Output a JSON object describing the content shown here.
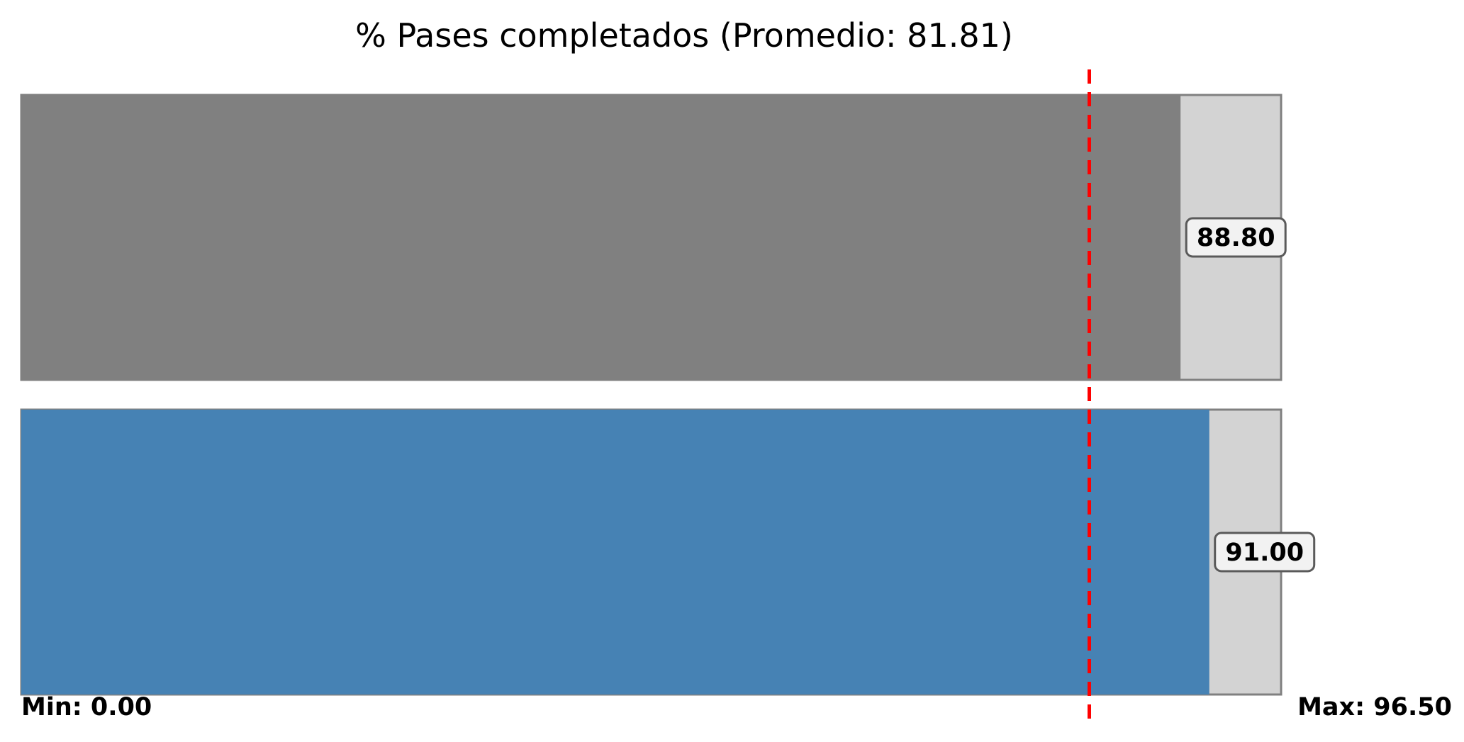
{
  "chart_data": {
    "type": "bar",
    "orientation": "horizontal",
    "title": "% Pases completados (Promedio: 81.81)",
    "xlabel": "",
    "ylabel": "",
    "xlim": [
      0,
      96.5
    ],
    "grid": false,
    "average": 81.81,
    "min_label": "Min: 0.00",
    "max_label": "Max: 96.50",
    "series": [
      {
        "values": [
          88.8,
          91.0
        ],
        "labels": [
          "88.80",
          "91.00"
        ],
        "colors": [
          "#808080",
          "#4682b4"
        ]
      }
    ],
    "background_color": "#d3d3d3",
    "border_color": "#808080",
    "average_line_color": "#ff0000"
  }
}
